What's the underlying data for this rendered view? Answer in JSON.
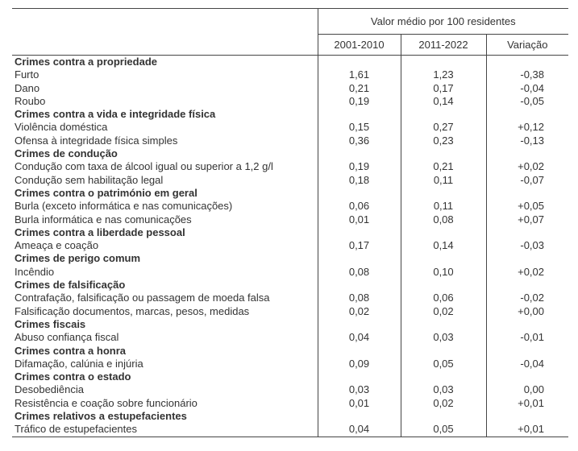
{
  "header": {
    "group_label": "Valor médio por 100 residentes",
    "col_2001_2010": "2001-2010",
    "col_2011_2022": "2011-2022",
    "col_variacao": "Variação"
  },
  "rows": [
    {
      "label": "Crimes contra a propriedade",
      "category": true,
      "v2001_2010": "",
      "v2011_2022": "",
      "variacao": ""
    },
    {
      "label": "Furto",
      "category": false,
      "v2001_2010": "1,61",
      "v2011_2022": "1,23",
      "variacao": "-0,38"
    },
    {
      "label": "Dano",
      "category": false,
      "v2001_2010": "0,21",
      "v2011_2022": "0,17",
      "variacao": "-0,04"
    },
    {
      "label": "Roubo",
      "category": false,
      "v2001_2010": "0,19",
      "v2011_2022": "0,14",
      "variacao": "-0,05"
    },
    {
      "label": "Crimes contra a vida e integridade física",
      "category": true,
      "v2001_2010": "",
      "v2011_2022": "",
      "variacao": ""
    },
    {
      "label": "Violência doméstica",
      "category": false,
      "v2001_2010": "0,15",
      "v2011_2022": "0,27",
      "variacao": "+0,12"
    },
    {
      "label": "Ofensa à integridade física simples",
      "category": false,
      "v2001_2010": "0,36",
      "v2011_2022": "0,23",
      "variacao": "-0,13"
    },
    {
      "label": "Crimes de condução",
      "category": true,
      "v2001_2010": "",
      "v2011_2022": "",
      "variacao": ""
    },
    {
      "label": "Condução com taxa de álcool igual ou superior a 1,2 g/l",
      "category": false,
      "v2001_2010": "0,19",
      "v2011_2022": "0,21",
      "variacao": "+0,02"
    },
    {
      "label": "Condução sem habilitação legal",
      "category": false,
      "v2001_2010": "0,18",
      "v2011_2022": "0,11",
      "variacao": "-0,07"
    },
    {
      "label": "Crimes contra o património em geral",
      "category": true,
      "v2001_2010": "",
      "v2011_2022": "",
      "variacao": ""
    },
    {
      "label": "Burla (exceto informática e nas comunicações)",
      "category": false,
      "v2001_2010": "0,06",
      "v2011_2022": "0,11",
      "variacao": "+0,05"
    },
    {
      "label": "Burla informática e nas comunicações",
      "category": false,
      "v2001_2010": "0,01",
      "v2011_2022": "0,08",
      "variacao": "+0,07"
    },
    {
      "label": "Crimes contra a liberdade pessoal",
      "category": true,
      "v2001_2010": "",
      "v2011_2022": "",
      "variacao": ""
    },
    {
      "label": "Ameaça e coação",
      "category": false,
      "v2001_2010": "0,17",
      "v2011_2022": "0,14",
      "variacao": "-0,03"
    },
    {
      "label": "Crimes de perigo comum",
      "category": true,
      "v2001_2010": "",
      "v2011_2022": "",
      "variacao": ""
    },
    {
      "label": "Incêndio",
      "category": false,
      "v2001_2010": "0,08",
      "v2011_2022": "0,10",
      "variacao": "+0,02"
    },
    {
      "label": "Crimes de falsificação",
      "category": true,
      "v2001_2010": "",
      "v2011_2022": "",
      "variacao": ""
    },
    {
      "label": "Contrafação, falsificação ou passagem de moeda falsa",
      "category": false,
      "v2001_2010": "0,08",
      "v2011_2022": "0,06",
      "variacao": "-0,02"
    },
    {
      "label": "Falsificação documentos, marcas, pesos, medidas",
      "category": false,
      "v2001_2010": "0,02",
      "v2011_2022": "0,02",
      "variacao": "+0,00"
    },
    {
      "label": "Crimes fiscais",
      "category": true,
      "v2001_2010": "",
      "v2011_2022": "",
      "variacao": ""
    },
    {
      "label": "Abuso confiança fiscal",
      "category": false,
      "v2001_2010": "0,04",
      "v2011_2022": "0,03",
      "variacao": "-0,01"
    },
    {
      "label": "Crimes contra a honra",
      "category": true,
      "v2001_2010": "",
      "v2011_2022": "",
      "variacao": ""
    },
    {
      "label": "Difamação, calúnia e injúria",
      "category": false,
      "v2001_2010": "0,09",
      "v2011_2022": "0,05",
      "variacao": "-0,04"
    },
    {
      "label": "Crimes contra o estado",
      "category": true,
      "v2001_2010": "",
      "v2011_2022": "",
      "variacao": ""
    },
    {
      "label": "Desobediência",
      "category": false,
      "v2001_2010": "0,03",
      "v2011_2022": "0,03",
      "variacao": "0,00"
    },
    {
      "label": "Resistência e coação sobre funcionário",
      "category": false,
      "v2001_2010": "0,01",
      "v2011_2022": "0,02",
      "variacao": "+0,01"
    },
    {
      "label": "Crimes relativos a estupefacientes",
      "category": true,
      "v2001_2010": "",
      "v2011_2022": "",
      "variacao": ""
    },
    {
      "label": "Tráfico de estupefacientes",
      "category": false,
      "v2001_2010": "0,04",
      "v2011_2022": "0,05",
      "variacao": "+0,01"
    }
  ],
  "colors": {
    "text": "#333333",
    "border": "#454545",
    "background": "#ffffff"
  }
}
